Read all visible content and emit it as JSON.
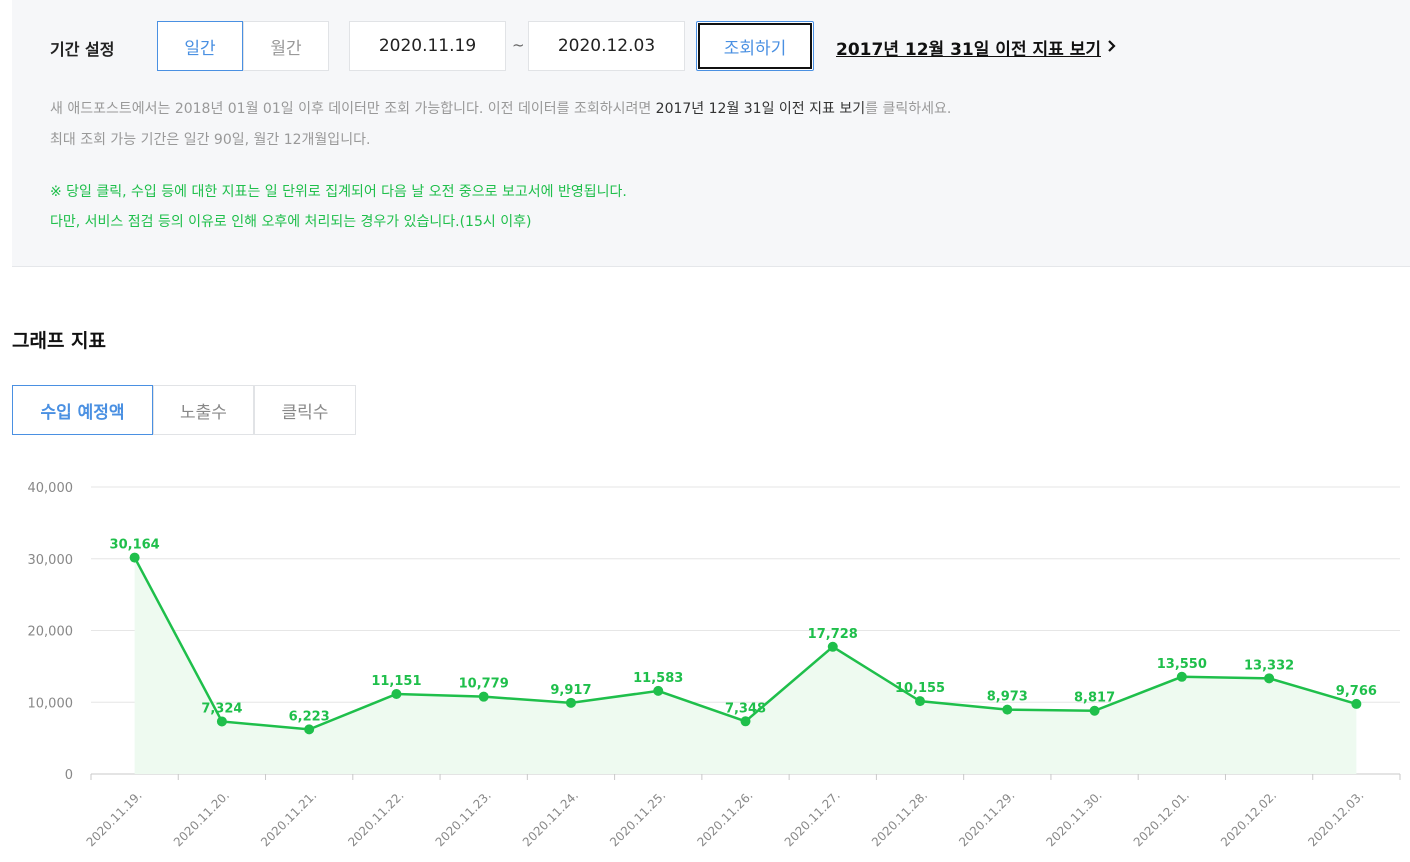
{
  "filter": {
    "label": "기간 설정",
    "period_options": [
      "일간",
      "월간"
    ],
    "selected_period": "일간",
    "start_date": "2020.11.19",
    "separator": "~",
    "end_date": "2020.12.03",
    "search_label": "조회하기",
    "old_report_link": "2017년 12월 31일 이전 지표 보기",
    "notes": {
      "line1_pre": "새 애드포스트에서는 2018년 01월 01일 이후 데이터만 조회 가능합니다. 이전 데이터를 조회하시려면 ",
      "line1_em": "2017년 12월 31일 이전 지표 보기",
      "line1_post": "를 클릭하세요.",
      "line2": "최대 조회 가능 기간은 일간 90일, 월간 12개월입니다.",
      "line3": "※ 당일 클릭, 수입 등에 대한 지표는 일 단위로 집계되어 다음 날 오전 중으로 보고서에 반영됩니다.",
      "line4": "다만, 서비스 점검 등의 이유로 인해 오후에 처리되는 경우가 있습니다.(15시 이후)"
    }
  },
  "graph": {
    "title": "그래프 지표",
    "tabs": [
      "수입 예정액",
      "노출수",
      "클릭수"
    ],
    "active_tab": "수입 예정액"
  },
  "colors": {
    "accent_blue": "#4a90e2",
    "line_green": "#1fbf4b",
    "area_fill": "#eefaf0"
  },
  "chart_data": {
    "type": "line",
    "categories": [
      "2020.11.19.",
      "2020.11.20.",
      "2020.11.21.",
      "2020.11.22.",
      "2020.11.23.",
      "2020.11.24.",
      "2020.11.25.",
      "2020.11.26.",
      "2020.11.27.",
      "2020.11.28.",
      "2020.11.29.",
      "2020.11.30.",
      "2020.12.01.",
      "2020.12.02.",
      "2020.12.03."
    ],
    "values": [
      30164,
      7324,
      6223,
      11151,
      10779,
      9917,
      11583,
      7348,
      17728,
      10155,
      8973,
      8817,
      13550,
      13332,
      9766
    ],
    "value_labels": [
      "30,164",
      "7,324",
      "6,223",
      "11,151",
      "10,779",
      "9,917",
      "11,583",
      "7,348",
      "17,728",
      "10,155",
      "8,973",
      "8,817",
      "13,550",
      "13,332",
      "9,766"
    ],
    "y_ticks": [
      "0",
      "10,000",
      "20,000",
      "30,000",
      "40,000"
    ],
    "y_tick_values": [
      0,
      10000,
      20000,
      30000,
      40000
    ],
    "ylim": [
      0,
      40000
    ],
    "grid": true,
    "area_fill": true
  }
}
